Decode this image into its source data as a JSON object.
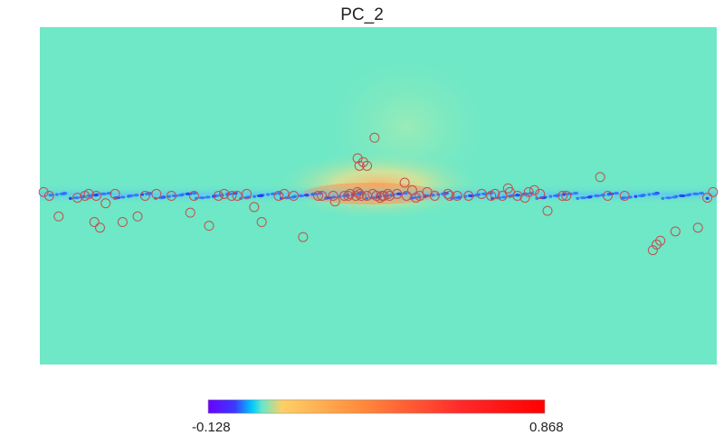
{
  "chart_data": {
    "type": "heatmap",
    "projection": "mollweide-like full-sky (Galactic plane along horizontal center)",
    "title": "PC_2",
    "colorbar": {
      "min_label": "-0.128",
      "max_label": "0.868",
      "min": -0.128,
      "max": 0.868,
      "colormap": "rainbow",
      "stops": [
        "#6a00ff",
        "#3b3bff",
        "#00c8ff",
        "#66e8c8",
        "#ffcf66",
        "#ff8c3c",
        "#ff2a2a",
        "#ff0000"
      ]
    },
    "background_value_color": "#6ee8c6",
    "plane_emission": "dark blue compact sources along the plane, orange/red emission at the Galactic center",
    "markers": {
      "shape": "circle",
      "color": "#c0504d",
      "lon_deg": [
        -178,
        -175,
        -170,
        -158,
        -150,
        -148,
        -146,
        -131,
        -122,
        -118,
        -100,
        -98,
        -90,
        -86,
        -83,
        -80,
        -78,
        -74,
        -70,
        -69,
        -66,
        -62,
        -60,
        -55,
        -48,
        -42,
        -38,
        -37,
        -30,
        -26,
        -22,
        -20,
        -18,
        -15,
        -14,
        -10,
        -6,
        -5,
        -3,
        -2,
        -1,
        1,
        3,
        6,
        9,
        10,
        11,
        12,
        15,
        16,
        18,
        23,
        24,
        30,
        32,
        40,
        45,
        50,
        53,
        62,
        66,
        70,
        75,
        78,
        82,
        85,
        90,
        98,
        100,
        110,
        118,
        124,
        128,
        136,
        140,
        145,
        148,
        150,
        151,
        154,
        156,
        160,
        170,
        175,
        178,
        2,
        6,
        8,
        10,
        11
      ],
      "lat_deg": [
        2,
        -1,
        -17,
        -19,
        -24,
        -26,
        -29,
        0,
        0,
        10,
        0,
        0,
        -8,
        1,
        3,
        2,
        -1,
        0,
        2,
        4,
        0,
        1,
        0,
        1,
        0,
        0,
        0,
        1,
        0,
        2,
        0,
        -1,
        3,
        0,
        7,
        1,
        0,
        1,
        0,
        0,
        -1,
        0,
        1,
        0,
        0,
        1,
        2,
        0,
        1,
        0,
        0,
        -3,
        0,
        0,
        0,
        -22,
        0,
        1,
        0,
        -14,
        -6,
        1,
        0,
        0,
        1,
        0,
        -16,
        0,
        -9,
        0,
        1,
        0,
        -11,
        -14,
        1,
        -4,
        -17,
        0,
        -14,
        1,
        0,
        -1,
        -11,
        0,
        2,
        31,
        16,
        18,
        16,
        20
      ]
    }
  }
}
